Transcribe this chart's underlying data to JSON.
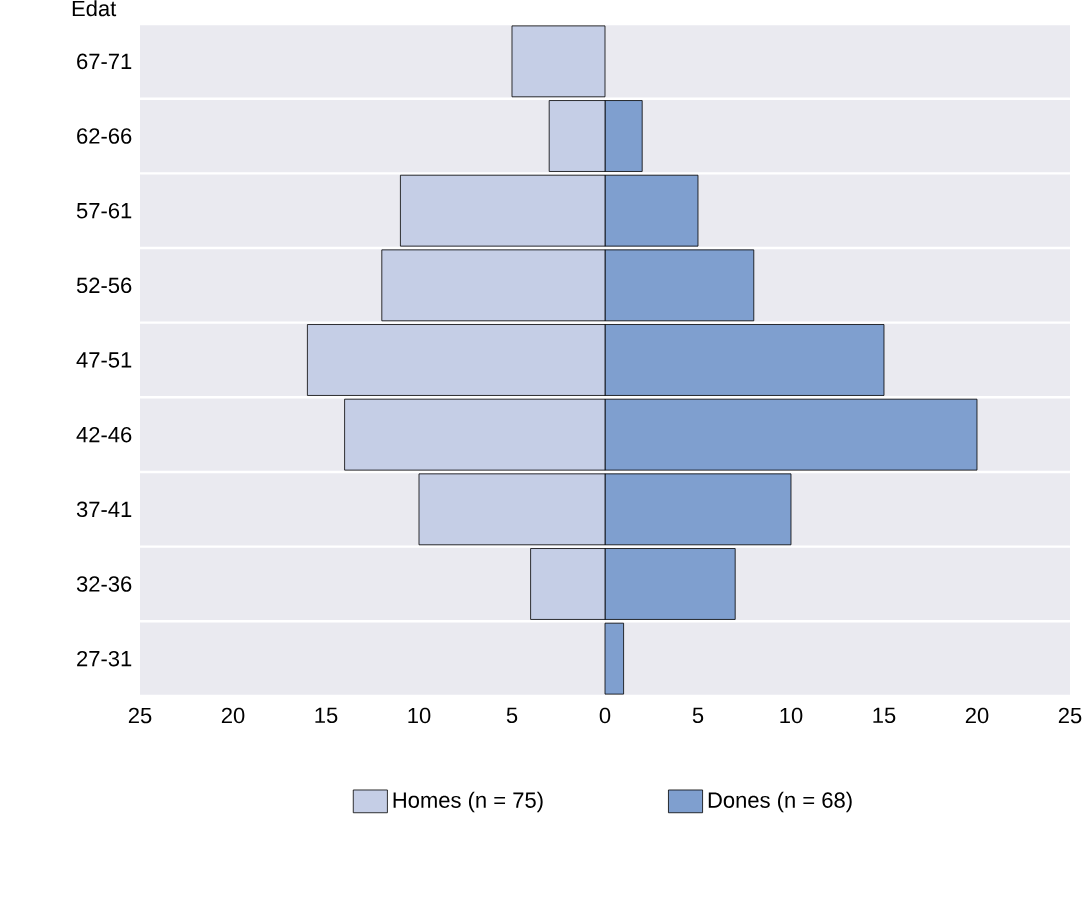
{
  "chart_data": {
    "type": "bar",
    "orientation": "horizontal",
    "stacked": true,
    "ylabel": "Edat",
    "categories": [
      "67-71",
      "62-66",
      "57-61",
      "52-56",
      "47-51",
      "42-46",
      "37-41",
      "32-36",
      "27-31"
    ],
    "series": [
      {
        "name": "Homes (n = 75)",
        "color": "#c5cee6",
        "values": [
          -5,
          -3,
          -11,
          -12,
          -16,
          -14,
          -10,
          -4,
          null
        ]
      },
      {
        "name": "Dones (n = 68)",
        "color": "#7f9fcf",
        "values": [
          null,
          2,
          5,
          8,
          15,
          20,
          10,
          7,
          1
        ]
      }
    ],
    "xlim": [
      -25,
      25
    ],
    "xticks": [
      {
        "value": -25,
        "label": "25"
      },
      {
        "value": -20,
        "label": "20"
      },
      {
        "value": -15,
        "label": "15"
      },
      {
        "value": -10,
        "label": "10"
      },
      {
        "value": -5,
        "label": "5"
      },
      0,
      5,
      10,
      15,
      20,
      25
    ],
    "grid": "y",
    "legend": "bottom"
  }
}
